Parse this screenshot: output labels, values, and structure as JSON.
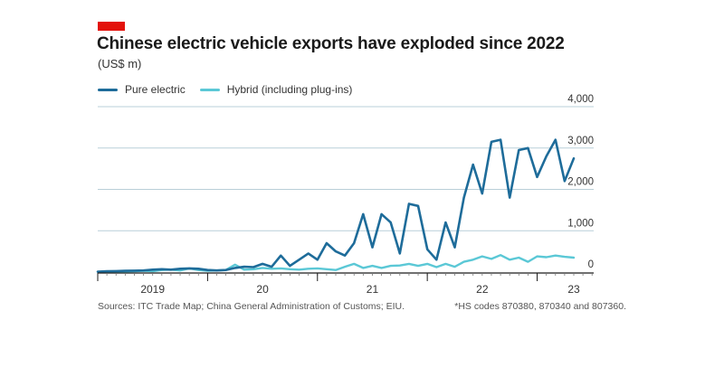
{
  "header": {
    "title": "Chinese electric vehicle exports have exploded since 2022",
    "subtitle": "(US$ m)",
    "brand_color": "#e3120b"
  },
  "footer": {
    "source": "Sources: ITC Trade Map; China General Administration of Customs; EIU.",
    "note": "*HS codes 870380, 870340 and 807360."
  },
  "chart_data": {
    "type": "line",
    "title": "Chinese electric vehicle exports have exploded since 2022",
    "ylabel": "US$ m",
    "xlabel": "",
    "ylim": [
      0,
      4000
    ],
    "xlim": [
      0,
      54
    ],
    "yticks": [
      {
        "value": 0,
        "label": "0"
      },
      {
        "value": 1000,
        "label": "1,000"
      },
      {
        "value": 2000,
        "label": "2,000"
      },
      {
        "value": 3000,
        "label": "3,000"
      },
      {
        "value": 4000,
        "label": "4,000"
      }
    ],
    "xticks": [
      {
        "pos": 6,
        "label": "2019"
      },
      {
        "pos": 18,
        "label": "20"
      },
      {
        "pos": 30,
        "label": "21"
      },
      {
        "pos": 42,
        "label": "22"
      },
      {
        "pos": 52,
        "label": "23"
      }
    ],
    "grid": true,
    "series": [
      {
        "name": "Pure electric",
        "color": "#1e6c9a",
        "values": [
          10,
          20,
          25,
          30,
          35,
          40,
          60,
          70,
          60,
          80,
          90,
          80,
          50,
          40,
          50,
          100,
          130,
          120,
          200,
          130,
          400,
          150,
          300,
          450,
          300,
          700,
          500,
          400,
          700,
          1400,
          600,
          1400,
          1200,
          450,
          1650,
          1600,
          550,
          300,
          1200,
          600,
          1800,
          2600,
          1900,
          3150,
          3200,
          1800,
          2950,
          3000,
          2300,
          2800,
          3200,
          2200,
          2750
        ]
      },
      {
        "name": "Hybrid (including plug-ins)",
        "color": "#5bc8d6",
        "values": [
          5,
          10,
          10,
          15,
          20,
          30,
          20,
          50,
          60,
          40,
          90,
          50,
          30,
          40,
          50,
          180,
          60,
          70,
          100,
          80,
          90,
          70,
          60,
          80,
          90,
          70,
          50,
          130,
          200,
          100,
          150,
          100,
          150,
          160,
          200,
          150,
          200,
          120,
          200,
          130,
          250,
          300,
          380,
          320,
          410,
          300,
          350,
          250,
          380,
          360,
          400,
          370,
          350
        ]
      }
    ]
  }
}
